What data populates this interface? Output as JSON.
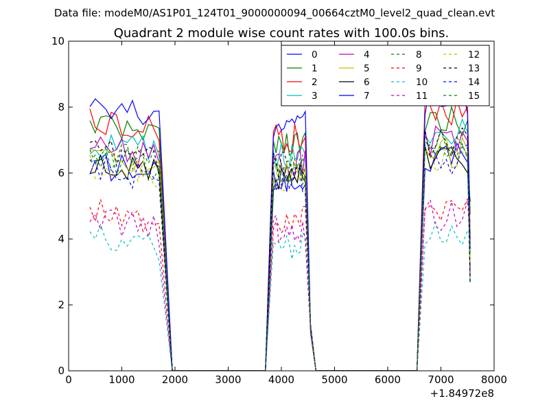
{
  "suptitle": "Data file: modeM0/AS1P01_124T01_9000000094_00664cztM0_level2_quad_clean.evt",
  "chart_data": {
    "type": "line",
    "title": "Quadrant 2 module wise count rates with 100.0s bins.",
    "xlabel": "",
    "ylabel": "",
    "x_offset_label": "+1.84972e8",
    "xlim": [
      0,
      8000
    ],
    "ylim": [
      0,
      10
    ],
    "x_ticks": [
      0,
      1000,
      2000,
      3000,
      4000,
      5000,
      6000,
      7000,
      8000
    ],
    "y_ticks": [
      0,
      2,
      4,
      6,
      8,
      10
    ],
    "x_tick_labels": [
      "0",
      "1000",
      "2000",
      "3000",
      "4000",
      "5000",
      "6000",
      "7000",
      "8000"
    ],
    "y_tick_labels": [
      "0",
      "2",
      "4",
      "6",
      "8",
      "10"
    ],
    "legend_position": "top-right",
    "segments": [
      {
        "start": 400,
        "end": 1750,
        "ramp_end": 1950
      },
      {
        "start": 3850,
        "end": 4450,
        "ramp_start": 3700,
        "ramp_end": 4650
      },
      {
        "start": 6700,
        "end": 7550,
        "ramp_start": 6550
      }
    ],
    "series": [
      {
        "name": "0",
        "color": "#0000ff",
        "style": "solid",
        "level": 6.3
      },
      {
        "name": "1",
        "color": "#008000",
        "style": "solid",
        "level": 7.4
      },
      {
        "name": "2",
        "color": "#ff0000",
        "style": "solid",
        "level": 7.6
      },
      {
        "name": "3",
        "color": "#00bfbf",
        "style": "solid",
        "level": 7.0
      },
      {
        "name": "4",
        "color": "#bf00bf",
        "style": "solid",
        "level": 6.8
      },
      {
        "name": "5",
        "color": "#bfbf00",
        "style": "solid",
        "level": 6.4
      },
      {
        "name": "6",
        "color": "#000000",
        "style": "solid",
        "level": 6.3
      },
      {
        "name": "7",
        "color": "#0000ff",
        "style": "solid",
        "level": 8.0
      },
      {
        "name": "8",
        "color": "#008000",
        "style": "dashed",
        "level": 6.6
      },
      {
        "name": "9",
        "color": "#ff0000",
        "style": "dashed",
        "level": 4.9
      },
      {
        "name": "10",
        "color": "#00bfbf",
        "style": "dashed",
        "level": 4.1
      },
      {
        "name": "11",
        "color": "#bf00bf",
        "style": "dashed",
        "level": 4.6
      },
      {
        "name": "12",
        "color": "#bfbf00",
        "style": "dashed",
        "level": 6.3
      },
      {
        "name": "13",
        "color": "#000000",
        "style": "dashed",
        "level": 6.7
      },
      {
        "name": "14",
        "color": "#0000ff",
        "style": "dashed",
        "level": 6.2
      },
      {
        "name": "15",
        "color": "#008000",
        "style": "dashed",
        "level": 6.5
      }
    ]
  }
}
